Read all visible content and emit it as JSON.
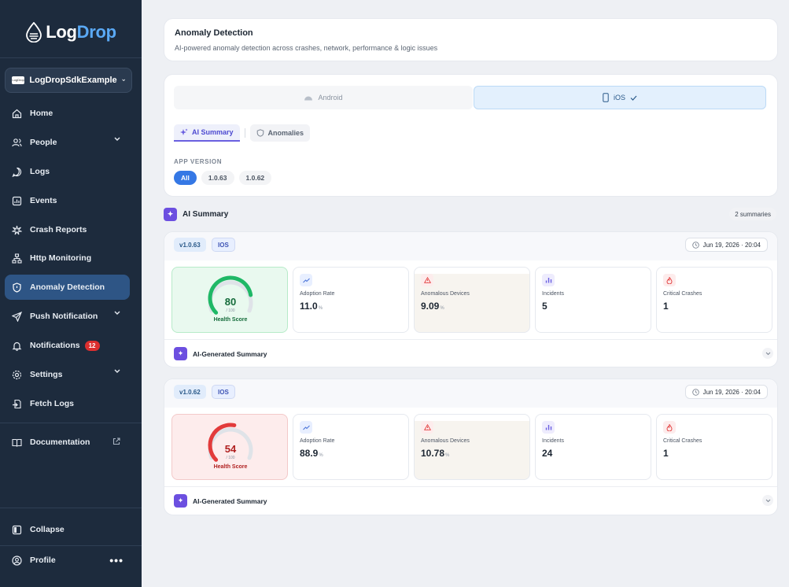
{
  "app": {
    "logo_part1": "Log",
    "logo_part2": "Drop"
  },
  "project": {
    "name": "LogDropSdkExample",
    "logo_text": "LogDrop"
  },
  "nav": [
    {
      "label": "Home",
      "icon": "home-icon"
    },
    {
      "label": "People",
      "icon": "people-icon"
    },
    {
      "label": "Logs",
      "icon": "chat-icon"
    },
    {
      "label": "Events",
      "icon": "chart-icon"
    },
    {
      "label": "Crash Reports",
      "icon": "crash-icon"
    },
    {
      "label": "Http Monitoring",
      "icon": "network-icon"
    },
    {
      "label": "Anomaly Detection",
      "icon": "shield-icon"
    },
    {
      "label": "Push Notification",
      "icon": "send-icon"
    },
    {
      "label": "Notifications",
      "icon": "bell-icon",
      "badge": "12"
    },
    {
      "label": "Settings",
      "icon": "gear-icon"
    },
    {
      "label": "Fetch Logs",
      "icon": "fetch-icon"
    },
    {
      "label": "Documentation",
      "icon": "book-icon"
    },
    {
      "label": "Collapse",
      "icon": "collapse-icon"
    },
    {
      "label": "Profile",
      "icon": "user-icon",
      "more": "•••"
    }
  ],
  "header": {
    "title": "Anomaly Detection",
    "subtitle": "AI-powered anomaly detection across crashes, network, performance & logic issues"
  },
  "platforms": {
    "android": "Android",
    "ios": "iOS"
  },
  "tabs": {
    "summary": "AI Summary",
    "anomalies": "Anomalies"
  },
  "app_version": {
    "label": "APP VERSION",
    "options": [
      "All",
      "1.0.63",
      "1.0.62"
    ],
    "selected": "All"
  },
  "summary_section": {
    "title": "AI Summary",
    "count": "2 summaries"
  },
  "releases": [
    {
      "version": "v1.0.63",
      "os": "IOS",
      "date": "Jun 19, 2026 · 20:04",
      "health": {
        "value": "80",
        "max": "/ 100",
        "label": "Health Score",
        "fraction": 0.8
      },
      "metrics": [
        {
          "label": "Adoption Rate",
          "value": "11.0",
          "unit": "%"
        },
        {
          "label": "Anomalous Devices",
          "value": "9.09",
          "unit": "%"
        },
        {
          "label": "Incidents",
          "value": "5",
          "unit": ""
        },
        {
          "label": "Critical Crashes",
          "value": "1",
          "unit": ""
        }
      ],
      "ai_label": "AI-Generated Summary"
    },
    {
      "version": "v1.0.62",
      "os": "IOS",
      "date": "Jun 19, 2026 · 20:04",
      "health": {
        "value": "54",
        "max": "/ 100",
        "label": "Health Score",
        "fraction": 0.54
      },
      "metrics": [
        {
          "label": "Adoption Rate",
          "value": "88.9",
          "unit": "%"
        },
        {
          "label": "Anomalous Devices",
          "value": "10.78",
          "unit": "%"
        },
        {
          "label": "Incidents",
          "value": "24",
          "unit": ""
        },
        {
          "label": "Critical Crashes",
          "value": "1",
          "unit": ""
        }
      ],
      "ai_label": "AI-Generated Summary"
    }
  ],
  "colors": {
    "accent": "#3578e5",
    "good": "#1fb866",
    "bad": "#e23b3b",
    "sidebar": "#1d2b3d"
  }
}
